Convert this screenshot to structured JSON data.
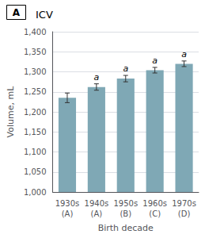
{
  "chart_data": {
    "type": "bar",
    "title": "ICV",
    "categories": [
      "1930s\n(A)",
      "1940s\n(A)",
      "1950s\n(B)",
      "1960s\n(C)",
      "1970s\n(D)"
    ],
    "values": [
      1235,
      1262,
      1283,
      1304,
      1320
    ],
    "errors": [
      12,
      8,
      8,
      7,
      7
    ],
    "color": "#7fa8b5",
    "xlabel": "Birth decade",
    "ylabel": "Volume, mL",
    "ylim": [
      1000,
      1400
    ],
    "yticks": [
      1000,
      1050,
      1100,
      1150,
      1200,
      1250,
      1300,
      1350,
      1400
    ],
    "grid": true,
    "annotations": [
      {
        "text": "A"
      },
      {
        "text": "a",
        "category": "1940s\n(A)"
      },
      {
        "text": "a",
        "category": "1950s\n(B)"
      },
      {
        "text": "a",
        "category": "1960s\n(C)"
      },
      {
        "text": "a",
        "category": "1970s\n(D)"
      }
    ]
  }
}
